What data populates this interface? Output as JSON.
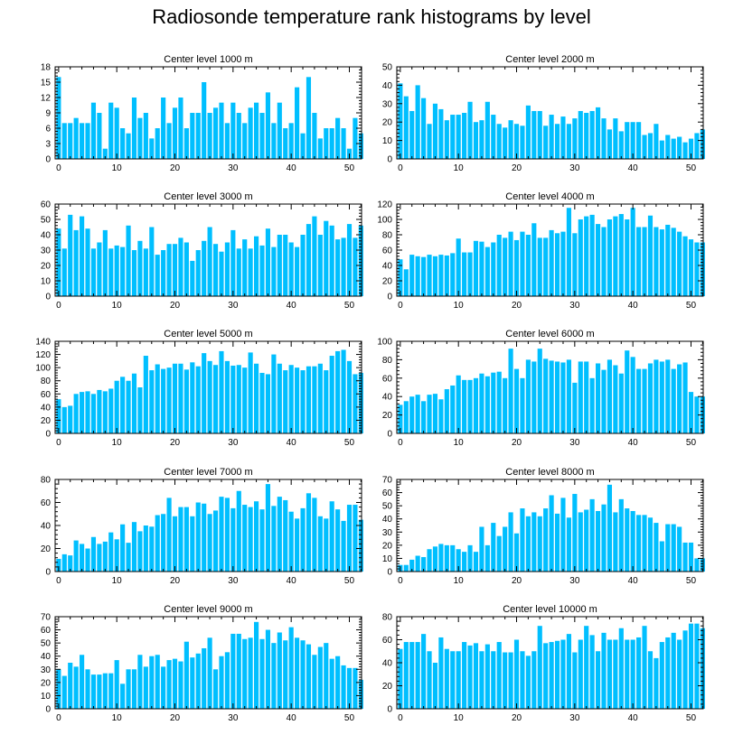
{
  "title": "Radiosonde temperature rank histograms by level",
  "colors": {
    "bar": "#00BFFF",
    "axis": "#000000",
    "background": "#FFFFFF"
  },
  "chart_data": [
    {
      "type": "bar",
      "title": "Center level 1000 m",
      "xticks": [
        0,
        10,
        20,
        30,
        40,
        50
      ],
      "xlim": [
        -0.6,
        52.1
      ],
      "ylim": [
        0,
        18
      ],
      "yticks": [
        0,
        3,
        6,
        9,
        12,
        15,
        18
      ],
      "values": [
        16,
        7,
        7,
        8,
        7,
        7,
        11,
        9,
        2,
        11,
        10,
        6,
        5,
        12,
        8,
        9,
        4,
        6,
        12,
        7,
        10,
        12,
        6,
        9,
        9,
        15,
        9,
        10,
        11,
        7,
        11,
        9,
        7,
        10,
        11,
        9,
        13,
        7,
        11,
        6,
        7,
        14,
        5,
        16,
        9,
        4,
        6,
        6,
        8,
        6,
        2,
        8,
        5
      ]
    },
    {
      "type": "bar",
      "title": "Center level 2000 m",
      "xticks": [
        0,
        10,
        20,
        30,
        40,
        50
      ],
      "xlim": [
        -0.6,
        52.1
      ],
      "ylim": [
        0,
        50
      ],
      "yticks": [
        0,
        10,
        20,
        30,
        40,
        50
      ],
      "values": [
        41,
        34,
        26,
        40,
        33,
        19,
        30,
        27,
        21,
        24,
        24,
        25,
        31,
        20,
        21,
        31,
        24,
        19,
        17,
        21,
        19,
        18,
        29,
        26,
        26,
        18,
        24,
        19,
        23,
        19,
        22,
        26,
        25,
        26,
        28,
        22,
        16,
        22,
        15,
        20,
        20,
        20,
        13,
        14,
        19,
        10,
        13,
        11,
        12,
        9,
        11,
        14,
        16
      ]
    },
    {
      "type": "bar",
      "title": "Center level 3000 m",
      "xticks": [
        0,
        10,
        20,
        30,
        40,
        50
      ],
      "xlim": [
        -0.6,
        52.1
      ],
      "ylim": [
        0,
        60
      ],
      "yticks": [
        0,
        10,
        20,
        30,
        40,
        50,
        60
      ],
      "values": [
        44,
        31,
        53,
        43,
        52,
        44,
        31,
        35,
        43,
        31,
        33,
        32,
        46,
        30,
        36,
        31,
        45,
        27,
        30,
        34,
        34,
        38,
        35,
        23,
        30,
        36,
        45,
        34,
        29,
        35,
        43,
        31,
        37,
        31,
        39,
        33,
        44,
        32,
        40,
        40,
        35,
        32,
        40,
        47,
        52,
        40,
        49,
        46,
        37,
        38,
        47,
        38,
        46
      ]
    },
    {
      "type": "bar",
      "title": "Center level 4000 m",
      "xticks": [
        0,
        10,
        20,
        30,
        40,
        50
      ],
      "xlim": [
        -0.6,
        52.1
      ],
      "ylim": [
        0,
        120
      ],
      "yticks": [
        0,
        20,
        40,
        60,
        80,
        100,
        120
      ],
      "values": [
        48,
        35,
        54,
        52,
        51,
        54,
        52,
        54,
        53,
        56,
        75,
        57,
        57,
        72,
        71,
        64,
        70,
        80,
        76,
        84,
        73,
        84,
        80,
        95,
        76,
        76,
        86,
        82,
        84,
        115,
        82,
        100,
        104,
        106,
        94,
        90,
        100,
        104,
        107,
        100,
        115,
        90,
        90,
        105,
        90,
        87,
        93,
        89,
        84,
        78,
        74,
        70,
        70
      ]
    },
    {
      "type": "bar",
      "title": "Center level 5000 m",
      "xticks": [
        0,
        10,
        20,
        30,
        40,
        50
      ],
      "xlim": [
        -0.6,
        52.1
      ],
      "ylim": [
        0,
        140
      ],
      "yticks": [
        0,
        20,
        40,
        60,
        80,
        100,
        120,
        140
      ],
      "values": [
        52,
        40,
        42,
        60,
        63,
        64,
        60,
        66,
        64,
        68,
        80,
        86,
        80,
        91,
        70,
        118,
        96,
        105,
        98,
        100,
        106,
        106,
        97,
        108,
        102,
        122,
        110,
        104,
        125,
        110,
        103,
        104,
        100,
        123,
        106,
        92,
        90,
        120,
        106,
        96,
        104,
        100,
        96,
        102,
        102,
        106,
        96,
        118,
        125,
        127,
        110,
        90,
        92
      ]
    },
    {
      "type": "bar",
      "title": "Center level 6000 m",
      "xticks": [
        0,
        10,
        20,
        30,
        40,
        50
      ],
      "xlim": [
        -0.6,
        52.1
      ],
      "ylim": [
        0,
        100
      ],
      "yticks": [
        0,
        20,
        40,
        60,
        80,
        100
      ],
      "values": [
        31,
        35,
        40,
        42,
        35,
        42,
        43,
        37,
        48,
        52,
        63,
        58,
        58,
        60,
        65,
        62,
        66,
        67,
        60,
        92,
        70,
        60,
        80,
        78,
        92,
        81,
        79,
        78,
        77,
        80,
        55,
        78,
        78,
        60,
        76,
        69,
        80,
        74,
        65,
        90,
        83,
        70,
        70,
        76,
        80,
        78,
        80,
        70,
        75,
        77,
        45,
        40,
        40
      ]
    },
    {
      "type": "bar",
      "title": "Center level 7000 m",
      "xticks": [
        0,
        10,
        20,
        30,
        40,
        50
      ],
      "xlim": [
        -0.6,
        52.1
      ],
      "ylim": [
        0,
        80
      ],
      "yticks": [
        0,
        20,
        40,
        60,
        80
      ],
      "values": [
        11,
        15,
        14,
        27,
        24,
        20,
        30,
        24,
        26,
        34,
        28,
        41,
        25,
        43,
        35,
        40,
        39,
        49,
        50,
        64,
        48,
        56,
        56,
        48,
        60,
        59,
        50,
        53,
        65,
        64,
        55,
        70,
        58,
        56,
        61,
        54,
        76,
        57,
        65,
        62,
        52,
        46,
        55,
        68,
        64,
        48,
        46,
        61,
        54,
        44,
        58,
        58,
        45
      ]
    },
    {
      "type": "bar",
      "title": "Center level 8000 m",
      "xticks": [
        0,
        10,
        20,
        30,
        40,
        50
      ],
      "xlim": [
        -0.6,
        52.1
      ],
      "ylim": [
        0,
        70
      ],
      "yticks": [
        0,
        10,
        20,
        30,
        40,
        50,
        60,
        70
      ],
      "values": [
        5,
        5,
        9,
        12,
        11,
        17,
        19,
        21,
        20,
        20,
        17,
        15,
        20,
        15,
        34,
        20,
        37,
        27,
        34,
        45,
        29,
        48,
        42,
        45,
        42,
        48,
        58,
        44,
        56,
        41,
        59,
        45,
        47,
        55,
        46,
        51,
        66,
        45,
        55,
        48,
        46,
        43,
        43,
        41,
        37,
        23,
        36,
        36,
        34,
        22,
        22,
        10,
        10
      ]
    },
    {
      "type": "bar",
      "title": "Center level 9000 m",
      "xticks": [
        0,
        10,
        20,
        30,
        40,
        50
      ],
      "xlim": [
        -0.6,
        52.1
      ],
      "ylim": [
        0,
        70
      ],
      "yticks": [
        0,
        10,
        20,
        30,
        40,
        50,
        60,
        70
      ],
      "values": [
        30,
        25,
        35,
        32,
        41,
        30,
        26,
        26,
        27,
        27,
        37,
        19,
        30,
        30,
        41,
        32,
        40,
        41,
        32,
        37,
        38,
        36,
        51,
        39,
        42,
        46,
        54,
        30,
        40,
        43,
        57,
        57,
        53,
        54,
        66,
        53,
        60,
        50,
        58,
        52,
        62,
        54,
        52,
        49,
        41,
        47,
        50,
        38,
        40,
        33,
        31,
        31,
        22
      ]
    },
    {
      "type": "bar",
      "title": "Center level 10000 m",
      "xticks": [
        0,
        10,
        20,
        30,
        40,
        50
      ],
      "xlim": [
        -0.6,
        52.1
      ],
      "ylim": [
        0,
        80
      ],
      "yticks": [
        0,
        20,
        40,
        60,
        80
      ],
      "values": [
        52,
        58,
        58,
        58,
        65,
        50,
        40,
        62,
        52,
        50,
        50,
        58,
        55,
        57,
        50,
        56,
        50,
        58,
        49,
        49,
        60,
        50,
        46,
        50,
        72,
        57,
        58,
        59,
        60,
        65,
        49,
        60,
        72,
        64,
        50,
        66,
        60,
        60,
        70,
        60,
        60,
        62,
        72,
        50,
        44,
        58,
        62,
        66,
        60,
        68,
        74,
        74,
        70
      ]
    }
  ]
}
